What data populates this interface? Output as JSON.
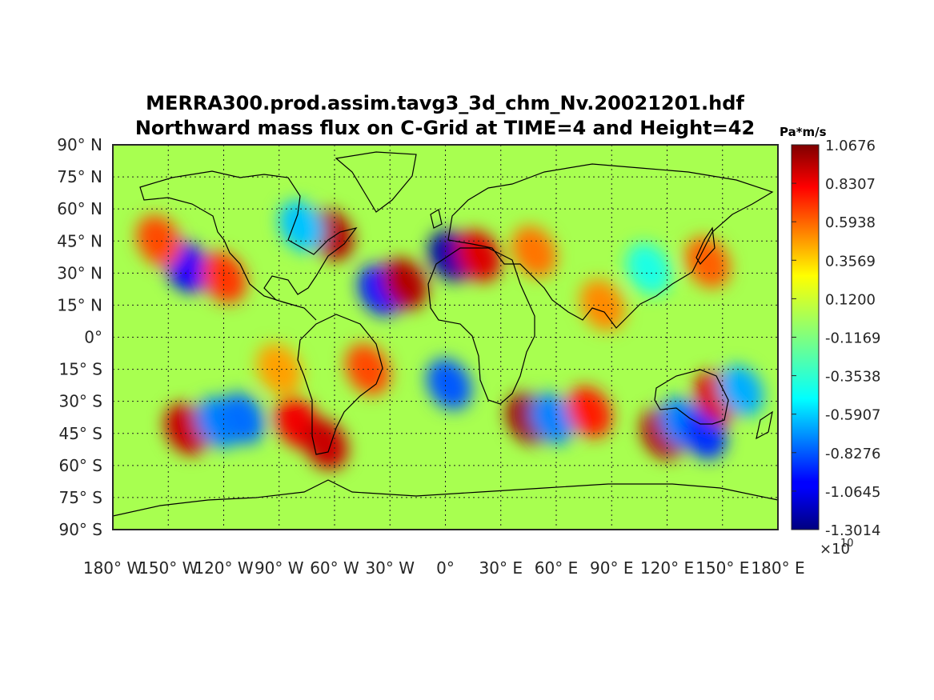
{
  "title_line1": "MERRA300.prod.assim.tavg3_3d_chm_Nv.20021201.hdf",
  "title_line2": "Northward mass flux on C-Grid at TIME=4 and Height=42",
  "colorbar": {
    "unit": "Pa*m/s",
    "ticks": [
      "1.0676",
      "0.8307",
      "0.5938",
      "0.3569",
      "0.1200",
      "-0.1169",
      "-0.3538",
      "-0.5907",
      "-0.8276",
      "-1.0645",
      "-1.3014"
    ],
    "exponent_base": "×10",
    "exponent_power": "10",
    "colormap": "jet",
    "min": -1.3014,
    "max": 1.0676
  },
  "axes": {
    "lat_labels": [
      "90° N",
      "75° N",
      "60° N",
      "45° N",
      "30° N",
      "15° N",
      "0°",
      "15° S",
      "30° S",
      "45° S",
      "60° S",
      "75° S",
      "90° S"
    ],
    "lon_labels": [
      "180° W",
      "150° W",
      "120° W",
      "90° W",
      "60° W",
      "30° W",
      "0°",
      "30° E",
      "60° E",
      "90° E",
      "120° E",
      "150° E",
      "180° E"
    ],
    "lat_range": [
      -90,
      90
    ],
    "lon_range": [
      -180,
      180
    ],
    "grid": "dotted"
  },
  "chart_data": {
    "type": "heatmap",
    "title": "MERRA300.prod.assim.tavg3_3d_chm_Nv.20021201.hdf / Northward mass flux on C-Grid at TIME=4 and Height=42",
    "xlabel": "",
    "ylabel": "",
    "xlim": [
      -180,
      180
    ],
    "ylim": [
      -90,
      90
    ],
    "value_range": [
      -13014000000.0,
      10676000000.0
    ],
    "background_value": 0.0,
    "features": [
      {
        "lon": -62,
        "lat": 48,
        "value": 9500000000.0
      },
      {
        "lon": -78,
        "lat": 52,
        "value": -5500000000.0
      },
      {
        "lon": -140,
        "lat": 33,
        "value": -10000000000.0
      },
      {
        "lon": -155,
        "lat": 45,
        "value": 6000000000.0
      },
      {
        "lon": -120,
        "lat": 28,
        "value": 6500000000.0
      },
      {
        "lon": -35,
        "lat": 22,
        "value": -9500000000.0
      },
      {
        "lon": -22,
        "lat": 25,
        "value": 9500000000.0
      },
      {
        "lon": 3,
        "lat": 38,
        "value": -12000000000.0
      },
      {
        "lon": 18,
        "lat": 38,
        "value": 8500000000.0
      },
      {
        "lon": 48,
        "lat": 40,
        "value": 5000000000.0
      },
      {
        "lon": 110,
        "lat": 32,
        "value": -3500000000.0
      },
      {
        "lon": 142,
        "lat": 35,
        "value": 5500000000.0
      },
      {
        "lon": -140,
        "lat": -43,
        "value": 9000000000.0
      },
      {
        "lon": -123,
        "lat": -40,
        "value": -7000000000.0
      },
      {
        "lon": -110,
        "lat": -38,
        "value": -7500000000.0
      },
      {
        "lon": -80,
        "lat": -40,
        "value": 8000000000.0
      },
      {
        "lon": -65,
        "lat": -50,
        "value": 9000000000.0
      },
      {
        "lon": -42,
        "lat": -15,
        "value": 6000000000.0
      },
      {
        "lon": 2,
        "lat": -22,
        "value": -8000000000.0
      },
      {
        "lon": 45,
        "lat": -38,
        "value": 10000000000.0
      },
      {
        "lon": 58,
        "lat": -38,
        "value": -7000000000.0
      },
      {
        "lon": 78,
        "lat": -35,
        "value": 7000000000.0
      },
      {
        "lon": 118,
        "lat": -45,
        "value": 9500000000.0
      },
      {
        "lon": 128,
        "lat": -40,
        "value": -7000000000.0
      },
      {
        "lon": 140,
        "lat": -45,
        "value": -9000000000.0
      },
      {
        "lon": 147,
        "lat": -28,
        "value": 8500000000.0
      },
      {
        "lon": 160,
        "lat": -25,
        "value": -6000000000.0
      },
      {
        "lon": -90,
        "lat": -15,
        "value": 4000000000.0
      },
      {
        "lon": 85,
        "lat": 15,
        "value": 4500000000.0
      }
    ]
  }
}
